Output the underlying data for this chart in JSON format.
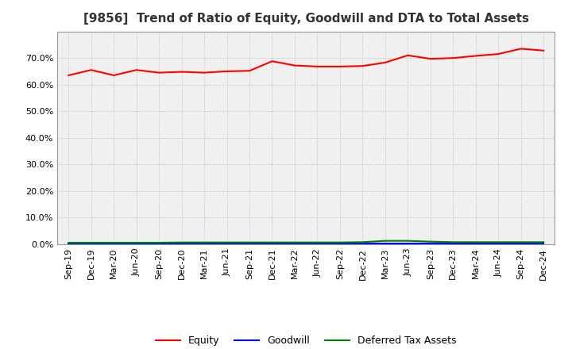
{
  "title": "[9856]  Trend of Ratio of Equity, Goodwill and DTA to Total Assets",
  "x_labels": [
    "Sep-19",
    "Dec-19",
    "Mar-20",
    "Jun-20",
    "Sep-20",
    "Dec-20",
    "Mar-21",
    "Jun-21",
    "Sep-21",
    "Dec-21",
    "Mar-22",
    "Jun-22",
    "Sep-22",
    "Dec-22",
    "Mar-23",
    "Jun-23",
    "Sep-23",
    "Dec-23",
    "Mar-24",
    "Jun-24",
    "Sep-24",
    "Dec-24"
  ],
  "equity": [
    0.635,
    0.655,
    0.635,
    0.655,
    0.645,
    0.648,
    0.645,
    0.65,
    0.652,
    0.688,
    0.672,
    0.668,
    0.668,
    0.67,
    0.683,
    0.71,
    0.697,
    0.7,
    0.708,
    0.715,
    0.735,
    0.728
  ],
  "goodwill": [
    0.002,
    0.002,
    0.002,
    0.002,
    0.002,
    0.002,
    0.002,
    0.002,
    0.002,
    0.002,
    0.002,
    0.002,
    0.002,
    0.002,
    0.002,
    0.002,
    0.002,
    0.002,
    0.002,
    0.002,
    0.002,
    0.002
  ],
  "dta": [
    0.006,
    0.006,
    0.006,
    0.006,
    0.006,
    0.007,
    0.007,
    0.007,
    0.007,
    0.007,
    0.007,
    0.007,
    0.007,
    0.008,
    0.013,
    0.013,
    0.01,
    0.008,
    0.008,
    0.008,
    0.008,
    0.008
  ],
  "equity_color": "#ff0000",
  "goodwill_color": "#0000ff",
  "dta_color": "#008000",
  "ylim": [
    0.0,
    0.8
  ],
  "yticks": [
    0.0,
    0.1,
    0.2,
    0.3,
    0.4,
    0.5,
    0.6,
    0.7
  ],
  "plot_bg_color": "#f0f0f0",
  "fig_bg_color": "#ffffff",
  "grid_color": "#bbbbbb",
  "title_fontsize": 11,
  "tick_fontsize": 8,
  "legend_labels": [
    "Equity",
    "Goodwill",
    "Deferred Tax Assets"
  ]
}
